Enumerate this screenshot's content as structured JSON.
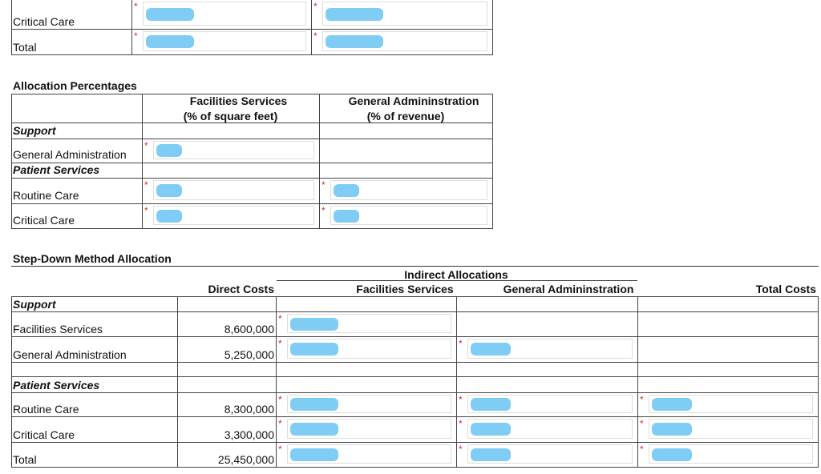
{
  "required_marker": "*",
  "top_table": {
    "rows": [
      "Critical Care",
      "Total"
    ]
  },
  "allocation": {
    "title": "Allocation Percentages",
    "columns": [
      {
        "line1": "Facilities Services",
        "line2": "(% of square feet)"
      },
      {
        "line1": "General Admininstration",
        "line2": "(% of revenue)"
      }
    ],
    "rows": [
      "Support",
      "General Administration",
      "Patient Services",
      "Routine Care",
      "Critical Care"
    ]
  },
  "step_down": {
    "title": "Step-Down Method Allocation",
    "group_header": "Indirect Allocations",
    "columns": [
      "Direct Costs",
      "Facilities Services",
      "General Admininstration",
      "Total Costs"
    ],
    "rows": [
      {
        "label": "Support"
      },
      {
        "label": "Facilities Services",
        "direct": "8,600,000"
      },
      {
        "label": "General Administration",
        "direct": "5,250,000"
      },
      {
        "label": "Patient Services"
      },
      {
        "label": "Routine Care",
        "direct": "8,300,000"
      },
      {
        "label": "Critical Care",
        "direct": "3,300,000"
      },
      {
        "label": "Total",
        "direct": "25,450,000"
      }
    ]
  }
}
